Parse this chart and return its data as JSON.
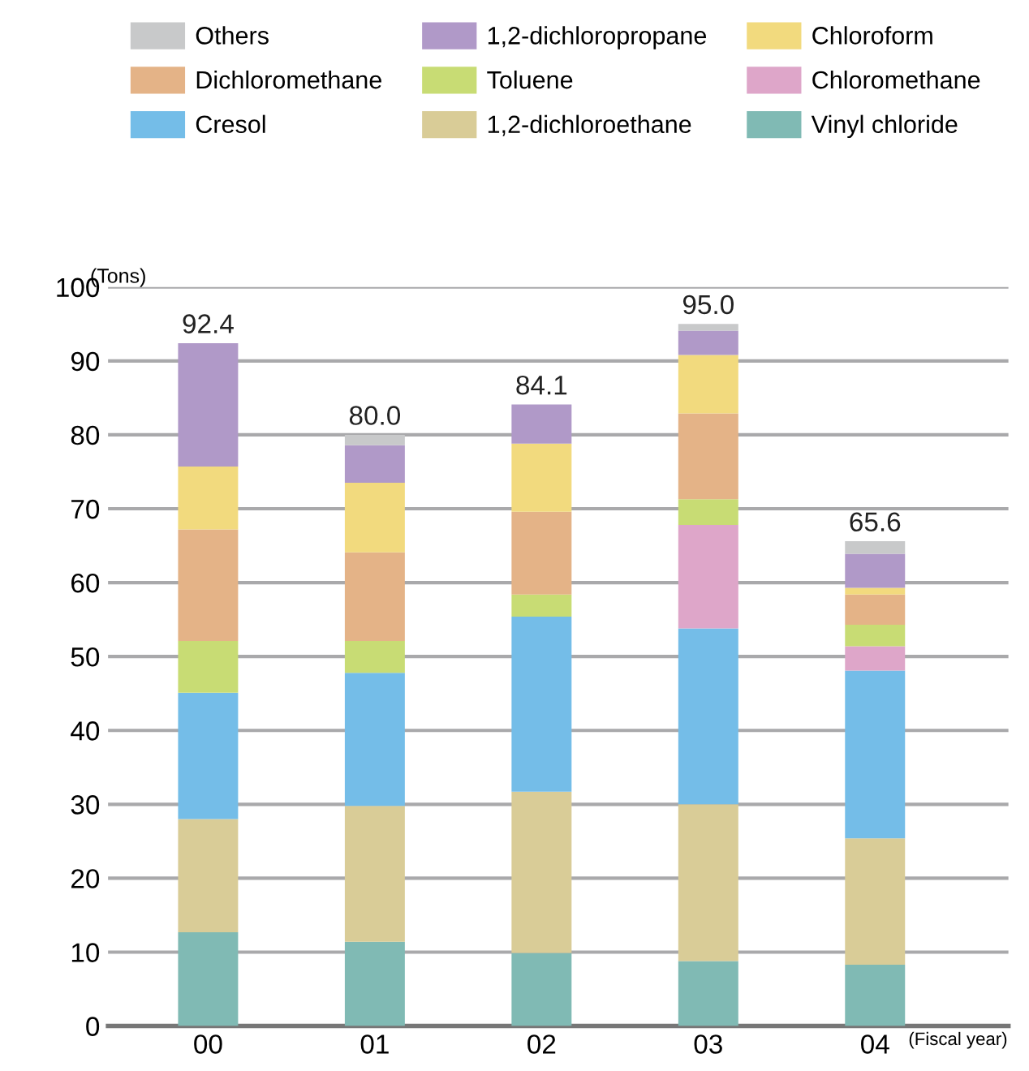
{
  "chart_data": {
    "type": "bar",
    "stacked": true,
    "xlabel": "(Fiscal year)",
    "ylabel": "(Tons)",
    "categories": [
      "00",
      "01",
      "02",
      "03",
      "04"
    ],
    "series": [
      {
        "name": "Vinyl chloride",
        "color": "#80bab4",
        "values": [
          12.7,
          11.4,
          9.9,
          8.8,
          8.3
        ]
      },
      {
        "name": "1,2-dichloroethane",
        "color": "#d9cc97",
        "values": [
          15.3,
          18.4,
          21.8,
          21.2,
          17.1
        ]
      },
      {
        "name": "Cresol",
        "color": "#74bde8",
        "values": [
          17.1,
          18.0,
          23.7,
          23.8,
          22.7
        ]
      },
      {
        "name": "Chloromethane",
        "color": "#dea6c9",
        "values": [
          0,
          0,
          0,
          14.0,
          3.3
        ]
      },
      {
        "name": "Toluene",
        "color": "#c8dc74",
        "values": [
          7.0,
          4.3,
          3.0,
          3.5,
          2.9
        ]
      },
      {
        "name": "Dichloromethane",
        "color": "#e4b387",
        "values": [
          15.1,
          12.0,
          11.2,
          11.6,
          4.1
        ]
      },
      {
        "name": "Chloroform",
        "color": "#f2da7e",
        "values": [
          8.5,
          9.4,
          9.2,
          7.9,
          0.9
        ]
      },
      {
        "name": "1,2-dichloropropane",
        "color": "#b099c8",
        "values": [
          16.7,
          5.1,
          5.3,
          3.3,
          4.6
        ]
      },
      {
        "name": "Others",
        "color": "#c8c9ca",
        "values": [
          0,
          1.4,
          0,
          0.9,
          1.7
        ]
      }
    ],
    "totals": [
      "92.4",
      "80.0",
      "84.1",
      "95.0",
      "65.6"
    ],
    "ylim": [
      0,
      100
    ],
    "yticks": [
      0,
      10,
      20,
      30,
      40,
      50,
      60,
      70,
      80,
      90,
      100
    ],
    "grid": "y",
    "legend": "top"
  }
}
